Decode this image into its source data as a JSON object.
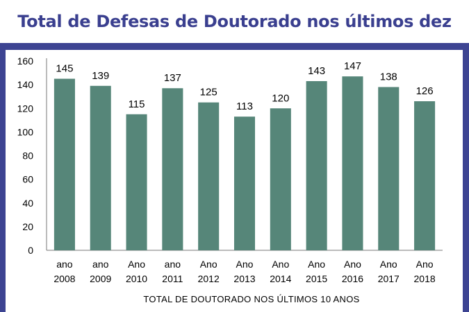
{
  "title": "Total de Defesas de Doutorado nos últimos dez anos",
  "chart_data": {
    "type": "bar",
    "categories": [
      [
        "ano",
        "2008"
      ],
      [
        "ano",
        "2009"
      ],
      [
        "Ano",
        "2010"
      ],
      [
        "ano",
        "2011"
      ],
      [
        "Ano",
        "2012"
      ],
      [
        "Ano",
        "2013"
      ],
      [
        "Ano",
        "2014"
      ],
      [
        "Ano",
        "2015"
      ],
      [
        "Ano",
        "2016"
      ],
      [
        "Ano",
        "2017"
      ],
      [
        "Ano",
        "2018"
      ]
    ],
    "values": [
      145,
      139,
      115,
      137,
      125,
      113,
      120,
      143,
      147,
      138,
      126
    ],
    "xlabel": "TOTAL DE DOUTORADO NOS ÚLTIMOS 10 ANOS",
    "ylim": [
      0,
      160
    ],
    "yticks": [
      0,
      20,
      40,
      60,
      80,
      100,
      120,
      140,
      160
    ],
    "bar_color": "#568679",
    "grid": false,
    "legend": "none"
  }
}
